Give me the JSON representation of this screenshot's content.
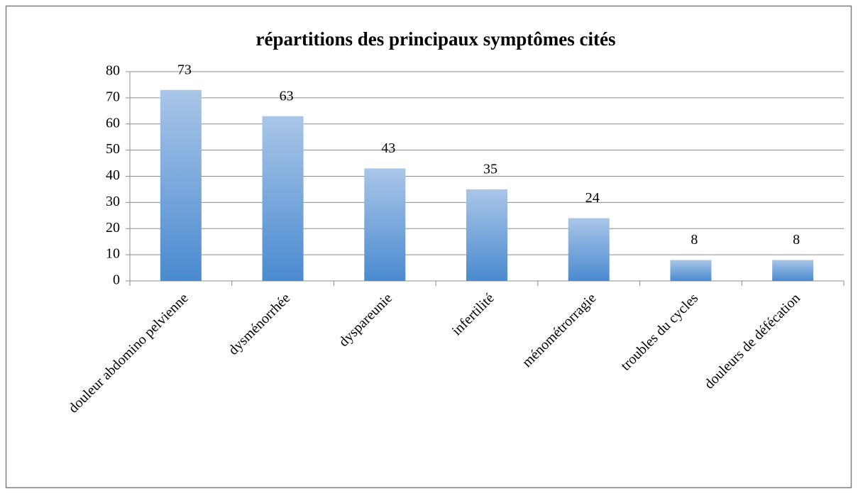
{
  "chart_data": {
    "type": "bar",
    "title": "répartitions des principaux symptômes cités",
    "categories": [
      "douleur abdomino pelvienne",
      "dysménorrhée",
      "dyspareunie",
      "infertilité",
      "ménométrorragie",
      "troubles du cycles",
      "douleurs de défécation"
    ],
    "values": [
      73,
      63,
      43,
      35,
      24,
      8,
      8
    ],
    "color": "#5b9bd5",
    "ylim": [
      0,
      80
    ],
    "yticks": [
      0,
      10,
      20,
      30,
      40,
      50,
      60,
      70,
      80
    ],
    "grid": true,
    "value_labels_shown": true
  }
}
